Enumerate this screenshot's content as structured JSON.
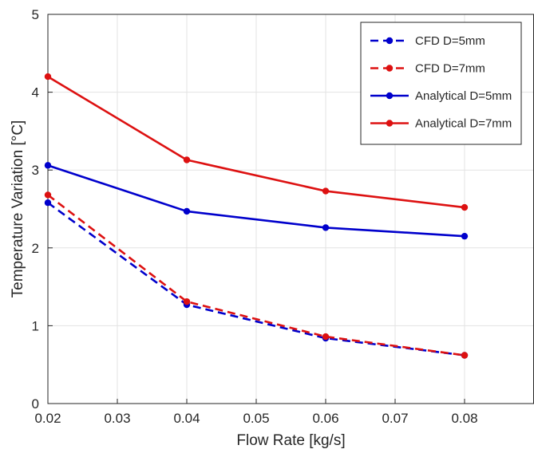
{
  "chart_data": {
    "type": "line",
    "title": "",
    "xlabel": "Flow Rate [kg/s]",
    "ylabel": "Temperature Variation [°C]",
    "xlim": [
      0.02,
      0.09
    ],
    "ylim": [
      0,
      5
    ],
    "xticks": [
      "0.02",
      "0.03",
      "0.04",
      "0.05",
      "0.06",
      "0.07",
      "0.08"
    ],
    "yticks": [
      "0",
      "1",
      "2",
      "3",
      "4",
      "5"
    ],
    "grid": true,
    "legend_position": "top-right",
    "x": [
      0.02,
      0.04,
      0.06,
      0.08
    ],
    "series": [
      {
        "name": "CFD D=5mm",
        "values": [
          2.58,
          1.27,
          0.84,
          0.62
        ],
        "color": "#0000cc",
        "style": "dashed"
      },
      {
        "name": "CFD D=7mm",
        "values": [
          2.68,
          1.31,
          0.86,
          0.62
        ],
        "color": "#dd1111",
        "style": "dashed"
      },
      {
        "name": "Analytical D=5mm",
        "values": [
          3.06,
          2.47,
          2.26,
          2.15
        ],
        "color": "#0000cc",
        "style": "solid"
      },
      {
        "name": "Analytical D=7mm",
        "values": [
          4.2,
          3.13,
          2.73,
          2.52
        ],
        "color": "#dd1111",
        "style": "solid"
      }
    ]
  }
}
